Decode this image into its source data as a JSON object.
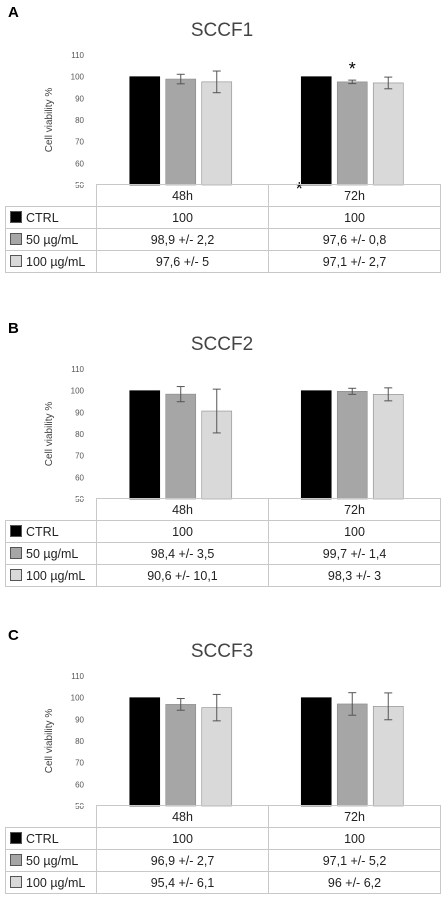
{
  "colors": {
    "CTRL": "#000000",
    "50": "#a6a6a6",
    "100": "#d9d9d9"
  },
  "chart_data": [
    {
      "type": "bar",
      "panel": "A",
      "title": "SCCF1",
      "ylabel": "Cell viability %",
      "ylim": [
        50,
        110
      ],
      "yticks": [
        "50",
        "60",
        "70",
        "80",
        "90",
        "100",
        "110"
      ],
      "categories": [
        "48h",
        "72h"
      ],
      "series": [
        {
          "name": "CTRL",
          "values": [
            100,
            100
          ],
          "errors": [
            0,
            0
          ]
        },
        {
          "name": "50 µg/mL",
          "values": [
            98.9,
            97.6
          ],
          "errors": [
            2.2,
            0.8
          ]
        },
        {
          "name": "100 µg/mL",
          "values": [
            97.6,
            97.1
          ],
          "errors": [
            5,
            2.7
          ]
        }
      ],
      "table": [
        {
          "label": "CTRL",
          "cells": [
            "100",
            "100"
          ]
        },
        {
          "label": "50 µg/mL",
          "cells": [
            "98,9 +/- 2,2",
            "97,6 +/- 0,8"
          ]
        },
        {
          "label": "100 µg/mL",
          "cells": [
            "97,6 +/- 5",
            "97,1 +/- 2,7"
          ]
        }
      ],
      "annotations": [
        {
          "text": "*",
          "category": "72h",
          "series": "50 µg/mL"
        },
        {
          "text": "*",
          "category": "72h",
          "series": "CTRL",
          "at": "axis-bottom"
        }
      ]
    },
    {
      "type": "bar",
      "panel": "B",
      "title": "SCCF2",
      "ylabel": "Cell viability %",
      "ylim": [
        50,
        110
      ],
      "yticks": [
        "50",
        "60",
        "70",
        "80",
        "90",
        "100",
        "110"
      ],
      "categories": [
        "48h",
        "72h"
      ],
      "series": [
        {
          "name": "CTRL",
          "values": [
            100,
            100
          ],
          "errors": [
            0,
            0
          ]
        },
        {
          "name": "50 µg/mL",
          "values": [
            98.4,
            99.7
          ],
          "errors": [
            3.5,
            1.4
          ]
        },
        {
          "name": "100 µg/mL",
          "values": [
            90.6,
            98.3
          ],
          "errors": [
            10.1,
            3
          ]
        }
      ],
      "table": [
        {
          "label": "CTRL",
          "cells": [
            "100",
            "100"
          ]
        },
        {
          "label": "50 µg/mL",
          "cells": [
            "98,4 +/- 3,5",
            "99,7 +/- 1,4"
          ]
        },
        {
          "label": "100 µg/mL",
          "cells": [
            "90,6 +/- 10,1",
            "98,3 +/- 3"
          ]
        }
      ],
      "annotations": []
    },
    {
      "type": "bar",
      "panel": "C",
      "title": "SCCF3",
      "ylabel": "Cell viability %",
      "ylim": [
        50,
        110
      ],
      "yticks": [
        "50",
        "60",
        "70",
        "80",
        "90",
        "100",
        "110"
      ],
      "categories": [
        "48h",
        "72h"
      ],
      "series": [
        {
          "name": "CTRL",
          "values": [
            100,
            100
          ],
          "errors": [
            0,
            0
          ]
        },
        {
          "name": "50 µg/mL",
          "values": [
            96.9,
            97.1
          ],
          "errors": [
            2.7,
            5.2
          ]
        },
        {
          "name": "100 µg/mL",
          "values": [
            95.4,
            96
          ],
          "errors": [
            6.1,
            6.2
          ]
        }
      ],
      "table": [
        {
          "label": "CTRL",
          "cells": [
            "100",
            "100"
          ]
        },
        {
          "label": "50 µg/mL",
          "cells": [
            "96,9 +/- 2,7",
            "97,1 +/- 5,2"
          ]
        },
        {
          "label": "100 µg/mL",
          "cells": [
            "95,4 +/- 6,1",
            "96 +/- 6,2"
          ]
        }
      ],
      "annotations": []
    }
  ]
}
